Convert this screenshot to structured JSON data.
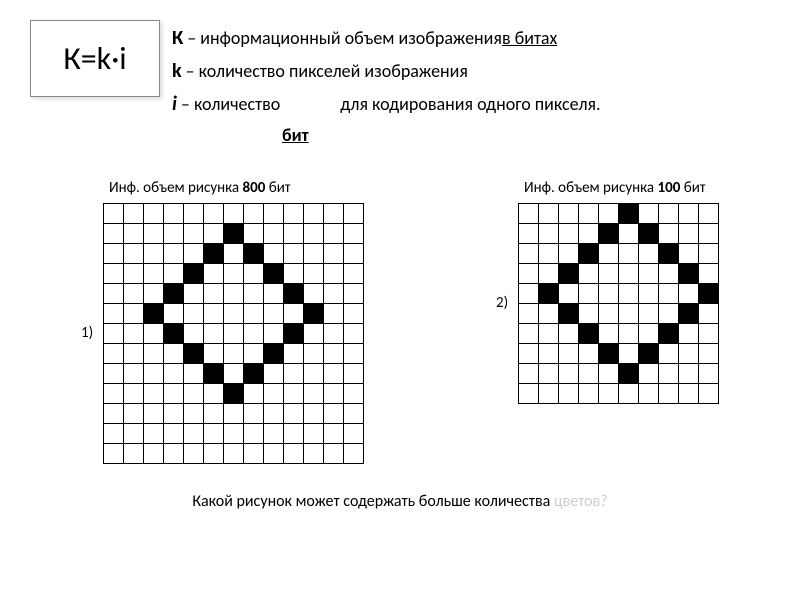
{
  "formula": "К=k·i",
  "defs": {
    "K_var": "К",
    "K_text": " – информационный объем изображения",
    "K_tail": " в битах",
    "k_var": "k",
    "k_text": " – количество пикселей изображения",
    "i_var": "i",
    "i_text_a": " – количество",
    "i_text_b": "для кодирования одного пикселя.",
    "bit_under": "бит"
  },
  "grids": {
    "left": {
      "title_a": "Инф. объем рисунка ",
      "title_b": "800",
      "title_c": " бит",
      "num": "1)",
      "size": 13,
      "pattern": [
        "0000000000000",
        "0000001000000",
        "0000010100000",
        "0000100010000",
        "0001000001000",
        "0010000000100",
        "0001000001000",
        "0000100010000",
        "0000010100000",
        "0000001000000",
        "0000000000000",
        "0000000000000",
        "0000000000000"
      ]
    },
    "right": {
      "title_a": "Инф. объем рисунка ",
      "title_b": "100",
      "title_c": " бит",
      "num": "2)",
      "size": 10,
      "pattern": [
        "0000010000",
        "0000101000",
        "0001000100",
        "0010000010",
        "0100000001",
        "0010000010",
        "0001000100",
        "0000101000",
        "0000010000",
        "0000000000"
      ]
    }
  },
  "question_a": "Какой рисунок может содержать больше количества ",
  "question_b": "цветов?",
  "colors": {
    "fade": "#cccccc",
    "text": "#000000",
    "bg": "#ffffff"
  },
  "fontsize": {
    "formula": 32,
    "defs": 18,
    "gridtitle": 15,
    "question": 16
  }
}
